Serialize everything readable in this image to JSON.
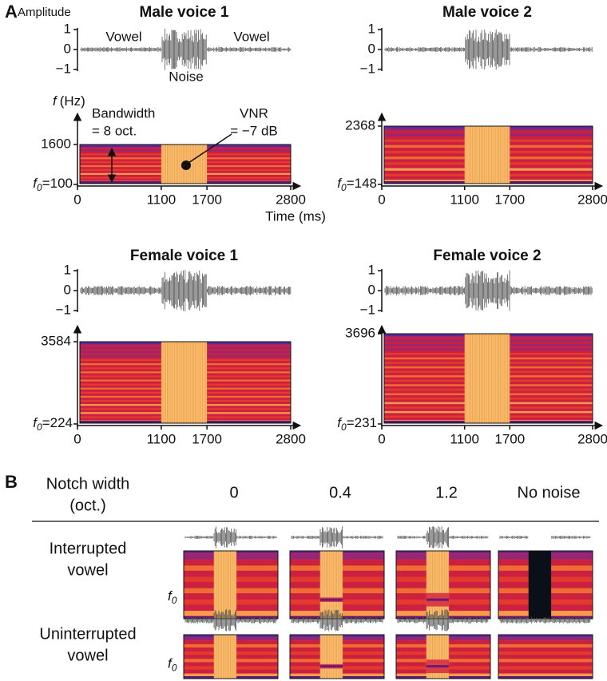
{
  "panel_a": {
    "label": "A",
    "amplitude_label": "Amplitude",
    "amplitude_ticks": [
      1,
      0,
      {
        "value": -1,
        "label": "−1"
      }
    ],
    "freq_label": {
      "symbol": "f",
      "unit": "(Hz)"
    },
    "f0_symbol": {
      "base": "f",
      "sub": "0"
    },
    "time_label": "Time (ms)",
    "xlim": [
      0,
      2800
    ],
    "xticks": [
      0,
      1100,
      1700,
      2800
    ],
    "annotations": {
      "vowel_left": "Vowel",
      "vowel_right": "Vowel",
      "noise": "Noise",
      "bandwidth": "Bandwidth",
      "bandwidth_value": "= 8 oct.",
      "vnr": "VNR",
      "vnr_value": "= −7 dB"
    },
    "voices": [
      {
        "title": "Male voice 1",
        "yticks": [
          {
            "value": 100,
            "label": "=100"
          },
          1600
        ]
      },
      {
        "title": "Male voice 2",
        "yticks": [
          {
            "value": 148,
            "label": "=148"
          },
          2368
        ]
      },
      {
        "title": "Female voice 1",
        "yticks": [
          {
            "value": 224,
            "label": "=224"
          },
          3584
        ]
      },
      {
        "title": "Female voice 2",
        "yticks": [
          {
            "value": 231,
            "label": "=231"
          },
          3696
        ]
      }
    ]
  },
  "panel_b": {
    "label": "B",
    "header": [
      "Notch width",
      "(oct.)"
    ],
    "columns": [
      0,
      0.4,
      1.2,
      "No noise"
    ],
    "rows": [
      [
        "Interrupted",
        "vowel"
      ],
      [
        "Uninterrupted",
        "vowel"
      ]
    ],
    "f0_symbol": {
      "base": "f",
      "sub": "0"
    }
  }
}
